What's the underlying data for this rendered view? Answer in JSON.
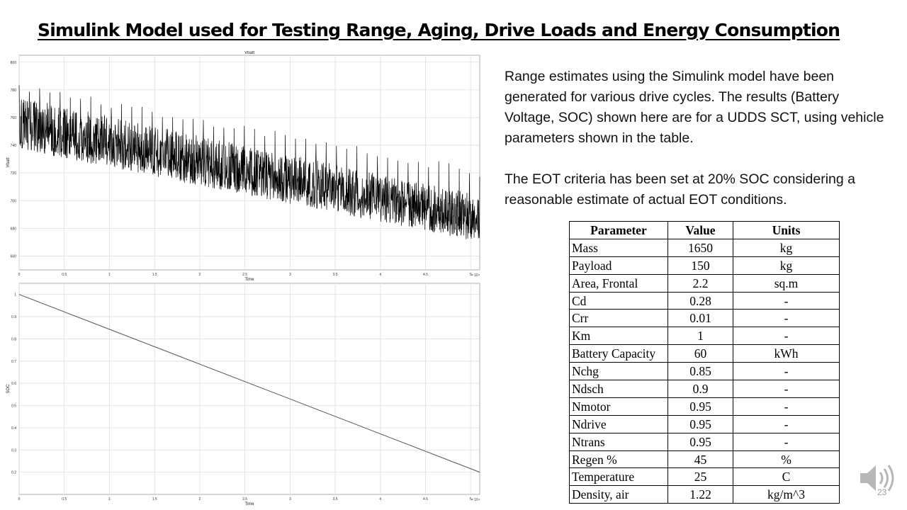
{
  "slide": {
    "title": "Simulink Model used for Testing Range, Aging, Drive Loads and Energy Consumption",
    "page_number": "23"
  },
  "description": {
    "paragraph1": "Range estimates using the Simulink model have been generated for various drive cycles. The results (Battery Voltage, SOC) shown here are for a UDDS SCT, using vehicle parameters shown in the table.",
    "paragraph2": "The EOT criteria has been set at 20% SOC considering a reasonable estimate of actual EOT conditions."
  },
  "table": {
    "headers": [
      "Parameter",
      "Value",
      "Units"
    ],
    "rows": [
      [
        "Mass",
        "1650",
        "kg"
      ],
      [
        "Payload",
        "150",
        "kg"
      ],
      [
        "Area, Frontal",
        "2.2",
        "sq.m"
      ],
      [
        "Cd",
        "0.28",
        "-"
      ],
      [
        "Crr",
        "0.01",
        "-"
      ],
      [
        "Km",
        "1",
        "-"
      ],
      [
        "Battery Capacity",
        "60",
        "kWh"
      ],
      [
        "Nchg",
        "0.85",
        "-"
      ],
      [
        "Ndsch",
        "0.9",
        "-"
      ],
      [
        "Nmotor",
        "0.95",
        "-"
      ],
      [
        "Ndrive",
        "0.95",
        "-"
      ],
      [
        "Ntrans",
        "0.95",
        "-"
      ],
      [
        "Regen %",
        "45",
        "%"
      ],
      [
        "Temperature",
        "25",
        "C"
      ],
      [
        "Density, air",
        "1.22",
        "kg/m^3"
      ]
    ]
  },
  "speaker_icon": "speaker-icon",
  "chart_data": [
    {
      "type": "line",
      "title": "Vbatt",
      "xlabel": "Time",
      "ylabel": "Vbatt",
      "x_exponent": "× 10⁴",
      "xlim": [
        0,
        5.1
      ],
      "ylim": [
        650,
        805
      ],
      "xticks": [
        "0",
        "0.5",
        "1",
        "1.5",
        "2",
        "2.5",
        "3",
        "3.5",
        "4",
        "4.5",
        "5"
      ],
      "yticks": [
        "660",
        "680",
        "700",
        "720",
        "740",
        "760",
        "780",
        "800"
      ],
      "grid": true,
      "series": [
        {
          "x": [
            0,
            5.1
          ],
          "upper": [
            775,
            704
          ],
          "lower": [
            737,
            670
          ],
          "mean": [
            753,
            685
          ],
          "spike_peak": [
            785,
            723
          ],
          "color": "#000000"
        }
      ]
    },
    {
      "type": "line",
      "title": "",
      "xlabel": "Time",
      "ylabel": "SOC",
      "x_exponent": "× 10⁴",
      "xlim": [
        0,
        5.1
      ],
      "ylim": [
        0.1,
        1.05
      ],
      "xticks": [
        "0",
        "0.5",
        "1",
        "1.5",
        "2",
        "2.5",
        "3",
        "3.5",
        "4",
        "4.5",
        "5"
      ],
      "yticks": [
        "0.2",
        "0.3",
        "0.4",
        "0.5",
        "0.6",
        "0.7",
        "0.8",
        "0.9",
        "1"
      ],
      "grid": true,
      "series": [
        {
          "x": [
            0,
            5.1
          ],
          "values": [
            1.0,
            0.2
          ],
          "color": "#555555"
        }
      ]
    }
  ]
}
